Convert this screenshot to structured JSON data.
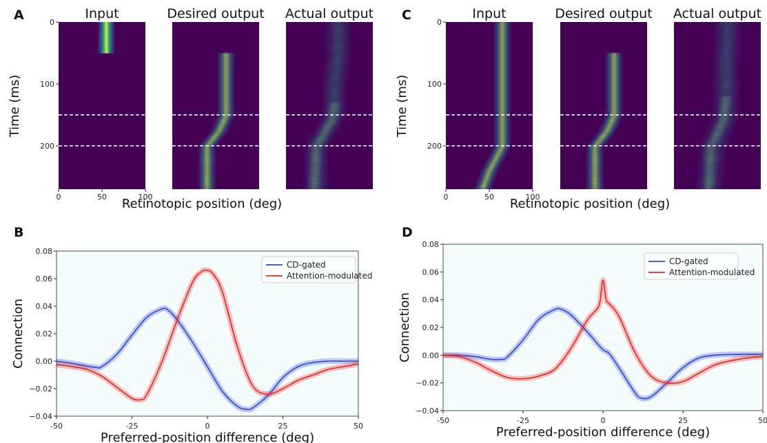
{
  "panels": {
    "A": "A",
    "B": "B",
    "C": "C",
    "D": "D"
  },
  "heatmap_titles": [
    "Input",
    "Desired output",
    "Actual output"
  ],
  "heatmap_ylabel": "Time (ms)",
  "heatmap_xlabel": "Retinotopic position (deg)",
  "heatmap_yticks": [
    "0",
    "100",
    "200"
  ],
  "heatmap_xticks": [
    "0",
    "50",
    "100"
  ],
  "colors": {
    "viridis_low": "#440154",
    "cd_gated": "#2a46d6",
    "attention": "#e8251c",
    "plot_bg": "#f4fbfb"
  },
  "chart_data": [
    {
      "type": "heatmap",
      "panel": "A",
      "subplots": [
        "Input",
        "Desired output",
        "Actual output"
      ],
      "xlabel": "Retinotopic position (deg)",
      "ylabel": "Time (ms)",
      "xlim": [
        0,
        100
      ],
      "ylim": [
        270,
        0
      ],
      "dashed_lines_ms": [
        150,
        200
      ]
    },
    {
      "type": "heatmap",
      "panel": "C",
      "subplots": [
        "Input",
        "Desired output",
        "Actual output"
      ],
      "xlabel": "Retinotopic position (deg)",
      "ylabel": "Time (ms)",
      "xlim": [
        0,
        100
      ],
      "ylim": [
        270,
        0
      ],
      "dashed_lines_ms": [
        150,
        200
      ]
    },
    {
      "type": "line",
      "panel": "B",
      "xlabel": "Preferred-position difference (deg)",
      "ylabel": "Connection",
      "xlim": [
        -50,
        50
      ],
      "ylim": [
        -0.04,
        0.08
      ],
      "xticks": [
        -50,
        -25,
        0,
        25,
        50
      ],
      "yticks": [
        -0.04,
        -0.02,
        0.0,
        0.02,
        0.04,
        0.06,
        0.08
      ],
      "ytick_labels": [
        "−0.04",
        "−0.02",
        "0.00",
        "0.02",
        "0.04",
        "0.06",
        "0.08"
      ],
      "xtick_labels": [
        "-50",
        "-25",
        "0",
        "25",
        "50"
      ],
      "legend": "top-right",
      "series": [
        {
          "name": "CD-gated",
          "x": [
            -50,
            -45,
            -40,
            -37,
            -35,
            -30,
            -25,
            -20,
            -15,
            -13,
            -10,
            -5,
            0,
            5,
            10,
            13,
            15,
            20,
            25,
            30,
            35,
            40,
            45,
            50
          ],
          "y": [
            0.0,
            -0.0015,
            -0.0035,
            -0.0045,
            -0.004,
            0.005,
            0.019,
            0.032,
            0.038,
            0.037,
            0.03,
            0.014,
            -0.004,
            -0.022,
            -0.033,
            -0.035,
            -0.034,
            -0.025,
            -0.012,
            -0.004,
            -0.001,
            0.0,
            0.0,
            0.0
          ]
        },
        {
          "name": "Attention-modulated",
          "x": [
            -50,
            -45,
            -40,
            -35,
            -30,
            -25,
            -22,
            -20,
            -15,
            -10,
            -5,
            -2,
            0,
            2,
            5,
            10,
            15,
            20,
            25,
            30,
            35,
            40,
            45,
            50
          ],
          "y": [
            -0.0025,
            -0.004,
            -0.006,
            -0.011,
            -0.019,
            -0.027,
            -0.028,
            -0.024,
            0.0,
            0.03,
            0.057,
            0.065,
            0.066,
            0.063,
            0.05,
            0.01,
            -0.018,
            -0.024,
            -0.02,
            -0.014,
            -0.01,
            -0.006,
            -0.004,
            -0.002
          ]
        }
      ]
    },
    {
      "type": "line",
      "panel": "D",
      "xlabel": "Preferred-position difference (deg)",
      "ylabel": "Connection",
      "xlim": [
        -50,
        50
      ],
      "ylim": [
        -0.04,
        0.08
      ],
      "xticks": [
        -50,
        -25,
        0,
        25,
        50
      ],
      "yticks": [
        -0.04,
        -0.02,
        0.0,
        0.02,
        0.04,
        0.06,
        0.08
      ],
      "ytick_labels": [
        "−0.04",
        "−0.02",
        "0.00",
        "0.02",
        "0.04",
        "0.06",
        "0.08"
      ],
      "xtick_labels": [
        "-50",
        "-25",
        "0",
        "25",
        "50"
      ],
      "legend": "top-right",
      "series": [
        {
          "name": "CD-gated",
          "x": [
            -50,
            -45,
            -40,
            -35,
            -32,
            -30,
            -25,
            -20,
            -15,
            -13,
            -10,
            -5,
            -2,
            0,
            2,
            5,
            10,
            12,
            15,
            20,
            25,
            30,
            35,
            40,
            45,
            50
          ],
          "y": [
            0.0,
            0.0,
            -0.001,
            -0.003,
            -0.003,
            -0.0015,
            0.011,
            0.026,
            0.033,
            0.033,
            0.029,
            0.017,
            0.009,
            0.004,
            0.001,
            -0.009,
            -0.027,
            -0.031,
            -0.03,
            -0.02,
            -0.009,
            -0.002,
            0.0,
            0.0005,
            0.0006,
            0.0007
          ]
        },
        {
          "name": "Attention-modulated",
          "x": [
            -50,
            -45,
            -40,
            -35,
            -30,
            -25,
            -20,
            -15,
            -10,
            -5,
            -2,
            -1,
            0,
            1,
            2,
            5,
            10,
            15,
            20,
            25,
            30,
            35,
            40,
            45,
            50
          ],
          "y": [
            0.0,
            -0.001,
            -0.005,
            -0.011,
            -0.016,
            -0.017,
            -0.015,
            -0.01,
            0.005,
            0.025,
            0.033,
            0.038,
            0.054,
            0.04,
            0.037,
            0.028,
            0.002,
            -0.015,
            -0.02,
            -0.019,
            -0.013,
            -0.007,
            -0.004,
            -0.002,
            -0.001
          ]
        }
      ]
    }
  ]
}
